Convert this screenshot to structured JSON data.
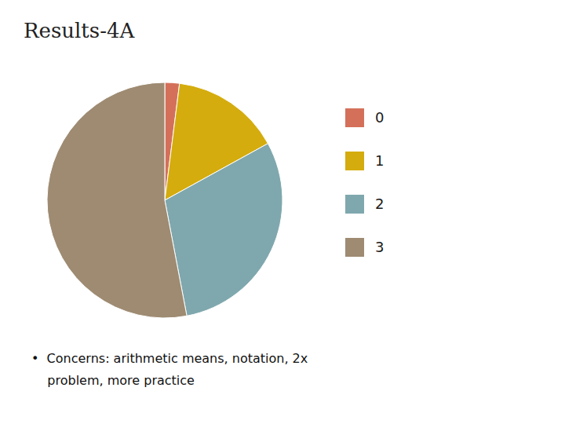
{
  "chart_data": {
    "type": "pie",
    "title": "Results-4A",
    "categories": [
      "0",
      "1",
      "2",
      "3"
    ],
    "values": [
      2,
      15,
      30,
      53
    ],
    "colors": [
      "#d4705a",
      "#d4ac0d",
      "#7fa8ae",
      "#9e8b72"
    ],
    "legend": "right",
    "annotations": [
      "•  Concerns: arithmetic means, notation, 2x",
      "    problem, more practice"
    ]
  }
}
